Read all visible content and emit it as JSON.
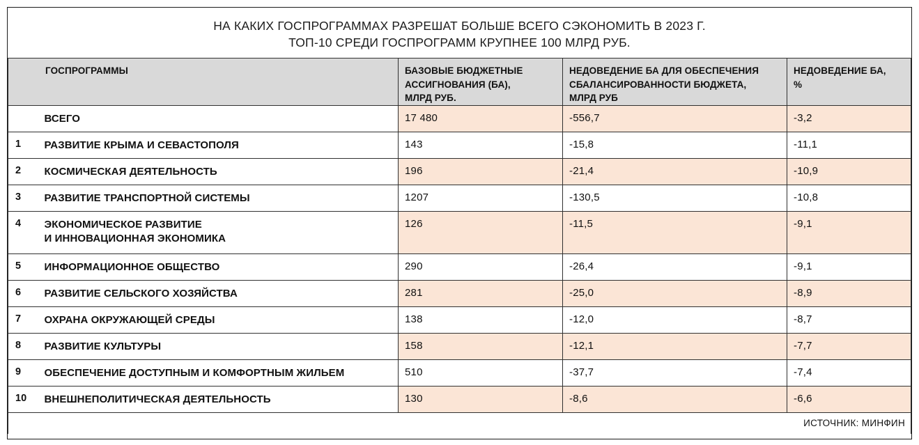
{
  "title": {
    "line1": "НА КАКИХ ГОСПРОГРАММАХ РАЗРЕШАТ БОЛЬШЕ ВСЕГО СЭКОНОМИТЬ В 2023 Г.",
    "line2": "ТОП-10 СРЕДИ ГОСПРОГРАММ КРУПНЕЕ 100 МЛРД РУБ."
  },
  "table": {
    "headers": {
      "programs": "ГОСПРОГРАММЫ",
      "base": "БАЗОВЫЕ БЮДЖЕТНЫЕ\nАССИГНОВАНИЯ (БА),\nМЛРД РУБ.",
      "shortfall": "НЕДОВЕДЕНИЕ БА ДЛЯ ОБЕСПЕЧЕНИЯ\nСБАЛАНСИРОВАННОСТИ БЮДЖЕТА,\nМЛРД РУБ",
      "shortfall_pct": "НЕДОВЕДЕНИЕ БА,\n%"
    },
    "total_row": {
      "rank": "",
      "name": "ВСЕГО",
      "base": "17 480",
      "shortfall": "-556,7",
      "pct": "-3,2"
    },
    "rows": [
      {
        "rank": "1",
        "name": "РАЗВИТИЕ КРЫМА И СЕВАСТОПОЛЯ",
        "base": "143",
        "shortfall": "-15,8",
        "pct": "-11,1"
      },
      {
        "rank": "2",
        "name": "КОСМИЧЕСКАЯ ДЕЯТЕЛЬНОСТЬ",
        "base": "196",
        "shortfall": "-21,4",
        "pct": "-10,9"
      },
      {
        "rank": "3",
        "name": "РАЗВИТИЕ ТРАНСПОРТНОЙ СИСТЕМЫ",
        "base": "1207",
        "shortfall": "-130,5",
        "pct": "-10,8"
      },
      {
        "rank": "4",
        "name": "ЭКОНОМИЧЕСКОЕ РАЗВИТИЕ\nИ ИННОВАЦИОННАЯ ЭКОНОМИКА",
        "base": "126",
        "shortfall": "-11,5",
        "pct": "-9,1"
      },
      {
        "rank": "5",
        "name": "ИНФОРМАЦИОННОЕ ОБЩЕСТВО",
        "base": "290",
        "shortfall": "-26,4",
        "pct": "-9,1"
      },
      {
        "rank": "6",
        "name": "РАЗВИТИЕ СЕЛЬСКОГО ХОЗЯЙСТВА",
        "base": "281",
        "shortfall": "-25,0",
        "pct": "-8,9"
      },
      {
        "rank": "7",
        "name": "ОХРАНА ОКРУЖАЮЩЕЙ СРЕДЫ",
        "base": "138",
        "shortfall": "-12,0",
        "pct": "-8,7"
      },
      {
        "rank": "8",
        "name": "РАЗВИТИЕ КУЛЬТУРЫ",
        "base": "158",
        "shortfall": "-12,1",
        "pct": "-7,7"
      },
      {
        "rank": "9",
        "name": "ОБЕСПЕЧЕНИЕ ДОСТУПНЫМ И КОМФОРТНЫМ ЖИЛЬЕМ",
        "base": "510",
        "shortfall": "-37,7",
        "pct": "-7,4"
      },
      {
        "rank": "10",
        "name": "ВНЕШНЕПОЛИТИЧЕСКАЯ ДЕЯТЕЛЬНОСТЬ",
        "base": "130",
        "shortfall": "-8,6",
        "pct": "-6,6"
      }
    ]
  },
  "footer": {
    "source": "ИСТОЧНИК: МИНФИН"
  },
  "colors": {
    "highlight": "#fbe5d6",
    "header_bg": "#d9d9d9",
    "border": "#303030"
  },
  "chart_data": {
    "type": "table",
    "title": "НА КАКИХ ГОСПРОГРАММАХ РАЗРЕШАТ БОЛЬШЕ ВСЕГО СЭКОНОМИТЬ В 2023 Г.",
    "subtitle": "ТОП-10 СРЕДИ ГОСПРОГРАММ КРУПНЕЕ 100 МЛРД РУБ.",
    "columns": [
      "ГОСПРОГРАММЫ",
      "БАЗОВЫЕ БЮДЖЕТНЫЕ АССИГНОВАНИЯ (БА), МЛРД РУБ.",
      "НЕДОВЕДЕНИЕ БА ДЛЯ ОБЕСПЕЧЕНИЯ СБАЛАНСИРОВАННОСТИ БЮДЖЕТА, МЛРД РУБ",
      "НЕДОВЕДЕНИЕ БА, %"
    ],
    "categories": [
      "ВСЕГО",
      "РАЗВИТИЕ КРЫМА И СЕВАСТОПОЛЯ",
      "КОСМИЧЕСКАЯ ДЕЯТЕЛЬНОСТЬ",
      "РАЗВИТИЕ ТРАНСПОРТНОЙ СИСТЕМЫ",
      "ЭКОНОМИЧЕСКОЕ РАЗВИТИЕ И ИННОВАЦИОННАЯ ЭКОНОМИКА",
      "ИНФОРМАЦИОННОЕ ОБЩЕСТВО",
      "РАЗВИТИЕ СЕЛЬСКОГО ХОЗЯЙСТВА",
      "ОХРАНА ОКРУЖАЮЩЕЙ СРЕДЫ",
      "РАЗВИТИЕ КУЛЬТУРЫ",
      "ОБЕСПЕЧЕНИЕ ДОСТУПНЫМ И КОМФОРТНЫМ ЖИЛЬЕМ",
      "ВНЕШНЕПОЛИТИЧЕСКАЯ ДЕЯТЕЛЬНОСТЬ"
    ],
    "series": [
      {
        "name": "БАЗОВЫЕ БЮДЖЕТНЫЕ АССИГНОВАНИЯ (БА), МЛРД РУБ.",
        "values": [
          17480,
          143,
          196,
          1207,
          126,
          290,
          281,
          138,
          158,
          510,
          130
        ]
      },
      {
        "name": "НЕДОВЕДЕНИЕ БА ДЛЯ ОБЕСПЕЧЕНИЯ СБАЛАНСИРОВАННОСТИ БЮДЖЕТА, МЛРД РУБ",
        "values": [
          -556.7,
          -15.8,
          -21.4,
          -130.5,
          -11.5,
          -26.4,
          -25.0,
          -12.0,
          -12.1,
          -37.7,
          -8.6
        ]
      },
      {
        "name": "НЕДОВЕДЕНИЕ БА, %",
        "values": [
          -3.2,
          -11.1,
          -10.9,
          -10.8,
          -9.1,
          -9.1,
          -8.9,
          -8.7,
          -7.7,
          -7.4,
          -6.6
        ]
      }
    ],
    "source": "ИСТОЧНИК: МИНФИН"
  }
}
